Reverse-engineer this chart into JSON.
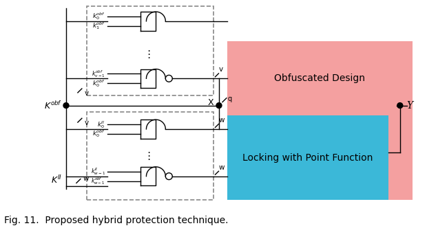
{
  "fig_width": 6.2,
  "fig_height": 3.32,
  "dpi": 100,
  "bg_color": "#ffffff",
  "obf_label": "Obfuscated Design",
  "lock_label": "Locking with Point Function",
  "caption": "Fig. 11.  Proposed hybrid protection technique.",
  "caption_fontsize": 10,
  "label_fontsize": 10,
  "small_fontsize": 7.5,
  "pink_color": "#F4A0A0",
  "blue_color": "#3BB8D8",
  "gate_color": "#000000",
  "wire_color": "#000000",
  "box_color": "#888888"
}
